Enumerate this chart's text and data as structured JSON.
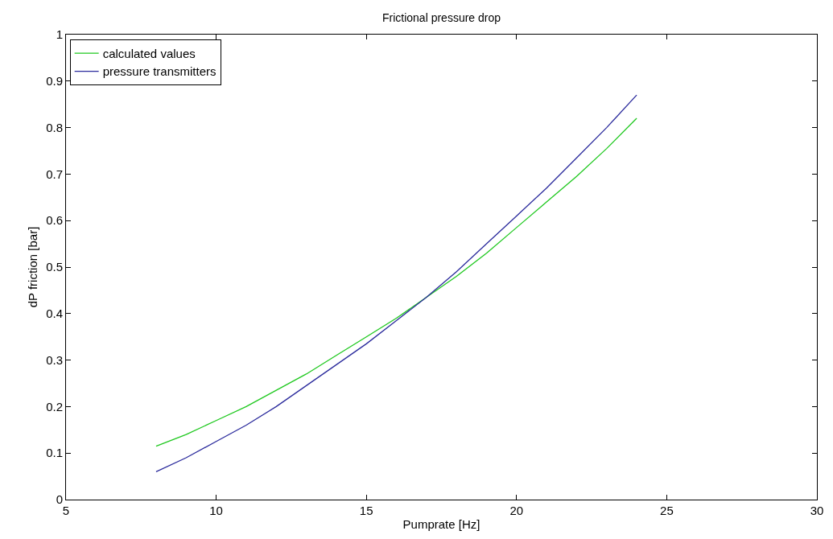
{
  "chart_data": {
    "type": "line",
    "title": "Frictional pressure drop",
    "xlabel": "Pumprate [Hz]",
    "ylabel": "dP friction [bar]",
    "xlim": [
      5,
      30
    ],
    "xticks": [
      5,
      10,
      15,
      20,
      25,
      30
    ],
    "ylim": [
      0,
      1
    ],
    "yticks": [
      0,
      0.1,
      0.2,
      0.3,
      0.4,
      0.5,
      0.6,
      0.7,
      0.8,
      0.9,
      1
    ],
    "legend": "top left",
    "marker": "none",
    "line_style": "solid",
    "x": [
      8,
      9,
      10,
      11,
      12,
      13,
      14,
      15,
      16,
      17,
      18,
      19,
      20,
      21,
      22,
      23,
      24
    ],
    "series": [
      {
        "name": "calculated values",
        "color": "#1ec81e",
        "values": [
          0.115,
          0.14,
          0.17,
          0.2,
          0.235,
          0.27,
          0.31,
          0.35,
          0.39,
          0.435,
          0.48,
          0.53,
          0.585,
          0.64,
          0.695,
          0.755,
          0.82
        ]
      },
      {
        "name": "pressure transmitters",
        "color": "#2a2a9c",
        "values": [
          0.06,
          0.09,
          0.125,
          0.16,
          0.2,
          0.245,
          0.29,
          0.335,
          0.385,
          0.435,
          0.49,
          0.55,
          0.61,
          0.67,
          0.735,
          0.8,
          0.87
        ]
      }
    ]
  }
}
